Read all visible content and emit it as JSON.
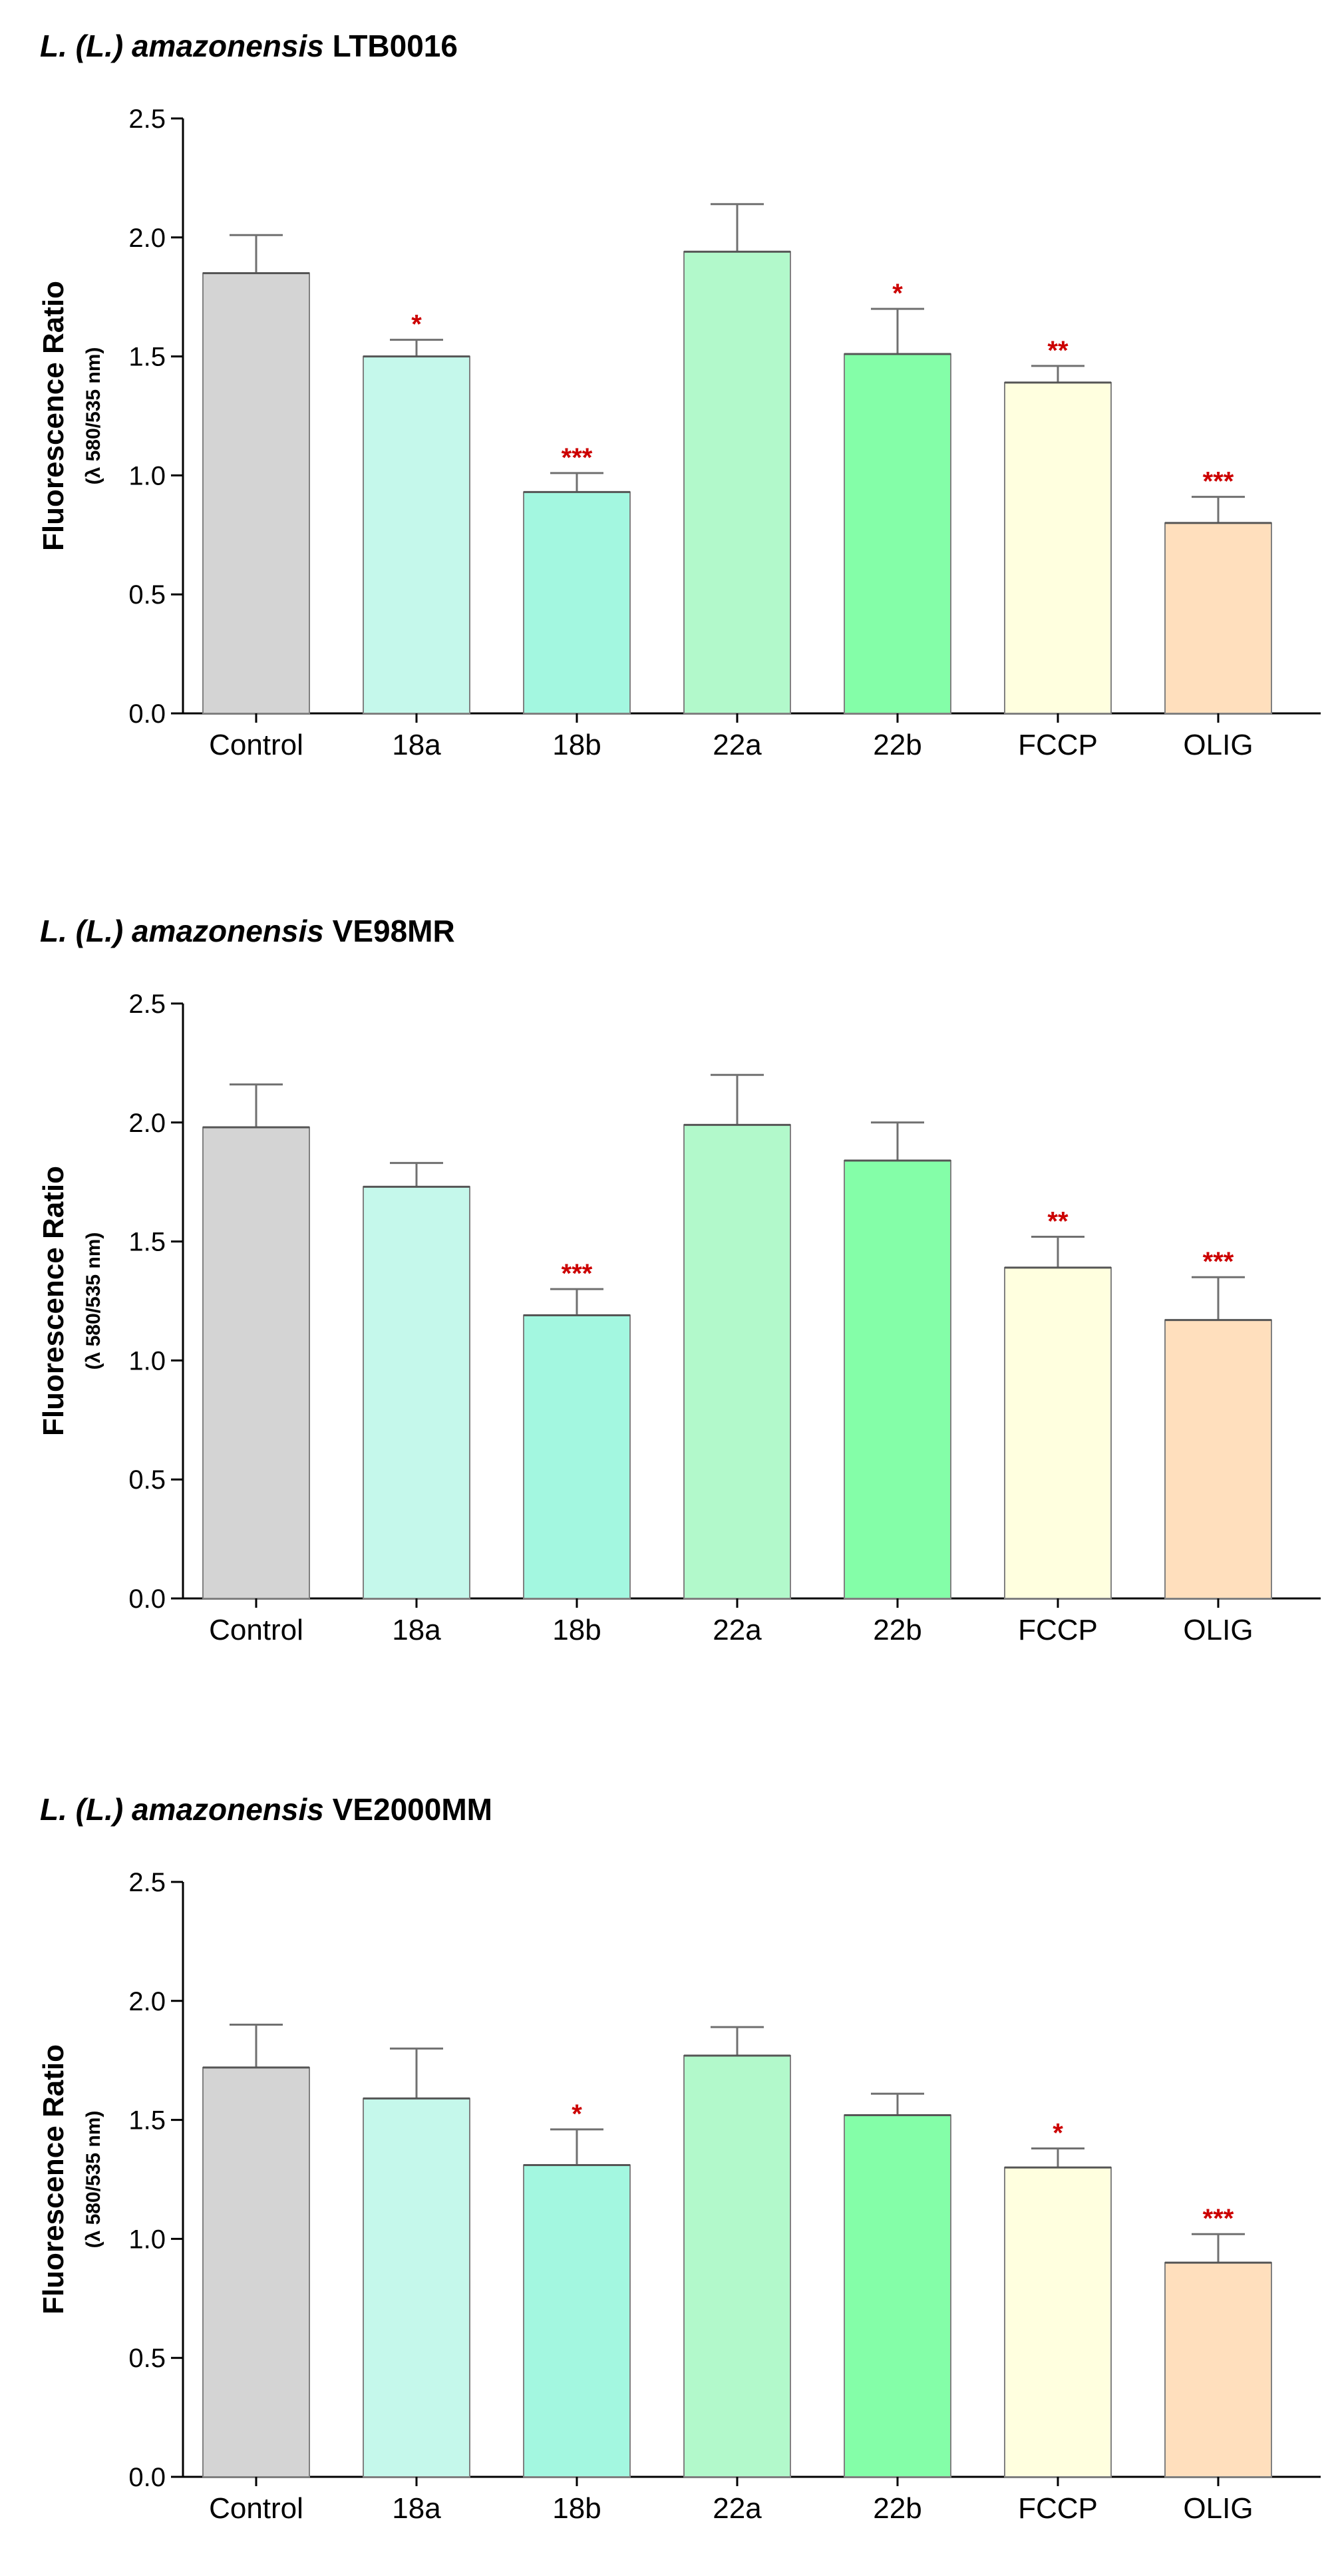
{
  "chart_data": [
    {
      "type": "bar",
      "title_italic": "L. (L.) amazonensis",
      "title_strain": "LTB0016",
      "ylabel": "Fluorescence Ratio",
      "ylabel_sub": "(λ 580/535 nm)",
      "ylim": [
        0,
        2.5
      ],
      "yticks": [
        "0.0",
        "0.5",
        "1.0",
        "1.5",
        "2.0",
        "2.5"
      ],
      "categories": [
        "Control",
        "18a",
        "18b",
        "22a",
        "22b",
        "FCCP",
        "OLIG"
      ],
      "values": [
        1.85,
        1.5,
        0.93,
        1.94,
        1.51,
        1.39,
        0.8
      ],
      "errors": [
        0.16,
        0.07,
        0.08,
        0.2,
        0.19,
        0.07,
        0.11
      ],
      "significance": [
        "",
        "*",
        "***",
        "",
        "*",
        "**",
        "***"
      ],
      "colors": [
        "#d4d4d4",
        "#c5f8eb",
        "#a3f7e0",
        "#b2f9cb",
        "#84fea8",
        "#ffffdf",
        "#ffdfbd"
      ]
    },
    {
      "type": "bar",
      "title_italic": "L. (L.) amazonensis",
      "title_strain": "VE98MR",
      "ylabel": "Fluorescence Ratio",
      "ylabel_sub": "(λ 580/535 nm)",
      "ylim": [
        0,
        2.5
      ],
      "yticks": [
        "0.0",
        "0.5",
        "1.0",
        "1.5",
        "2.0",
        "2.5"
      ],
      "categories": [
        "Control",
        "18a",
        "18b",
        "22a",
        "22b",
        "FCCP",
        "OLIG"
      ],
      "values": [
        1.98,
        1.73,
        1.19,
        1.99,
        1.84,
        1.39,
        1.17
      ],
      "errors": [
        0.18,
        0.1,
        0.11,
        0.21,
        0.16,
        0.13,
        0.18
      ],
      "significance": [
        "",
        "",
        "***",
        "",
        "",
        "**",
        "***"
      ],
      "colors": [
        "#d4d4d4",
        "#c5f8eb",
        "#a3f7e0",
        "#b2f9cb",
        "#84fea8",
        "#ffffdf",
        "#ffdfbd"
      ]
    },
    {
      "type": "bar",
      "title_italic": "L. (L.) amazonensis",
      "title_strain": "VE2000MM",
      "ylabel": "Fluorescence Ratio",
      "ylabel_sub": "(λ 580/535 nm)",
      "ylim": [
        0,
        2.5
      ],
      "yticks": [
        "0.0",
        "0.5",
        "1.0",
        "1.5",
        "2.0",
        "2.5"
      ],
      "categories": [
        "Control",
        "18a",
        "18b",
        "22a",
        "22b",
        "FCCP",
        "OLIG"
      ],
      "values": [
        1.72,
        1.59,
        1.31,
        1.77,
        1.52,
        1.3,
        0.9
      ],
      "errors": [
        0.18,
        0.21,
        0.15,
        0.12,
        0.09,
        0.08,
        0.12
      ],
      "significance": [
        "",
        "",
        "*",
        "",
        "",
        "*",
        "***"
      ],
      "colors": [
        "#d4d4d4",
        "#c5f8eb",
        "#a3f7e0",
        "#b2f9cb",
        "#84fea8",
        "#ffffdf",
        "#ffdfbd"
      ]
    }
  ]
}
